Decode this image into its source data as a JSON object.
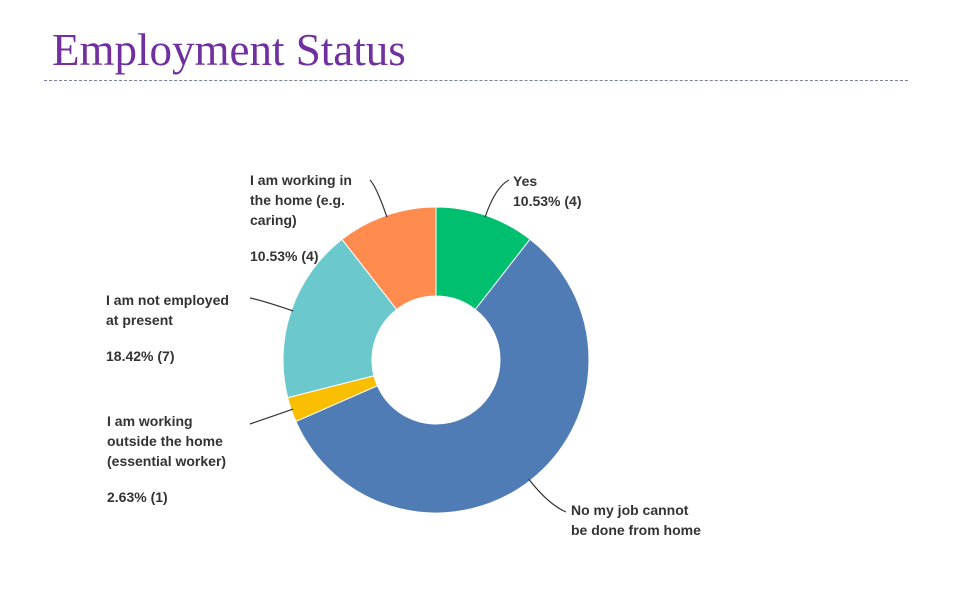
{
  "slide": {
    "title": "Employment Status"
  },
  "chart_data": {
    "type": "pie",
    "donut": true,
    "legend": "none",
    "slices": [
      {
        "label": "Yes",
        "percent": 10.53,
        "count": 4,
        "value_text": "10.53% (4)",
        "color": "#00bf6f"
      },
      {
        "label": "No my job cannot\nbe done from home",
        "percent": 57.89,
        "count": 22,
        "color": "#507cb6"
      },
      {
        "label": "I am working\noutside the home\n(essential worker)",
        "percent": 2.63,
        "count": 1,
        "value_text": "2.63% (1)",
        "color": "#f9be00"
      },
      {
        "label": "I am not employed\nat present",
        "percent": 18.42,
        "count": 7,
        "value_text": "18.42% (7)",
        "color": "#6bc8cd"
      },
      {
        "label": "I am working in\nthe home (e.g.\ncaring)",
        "percent": 10.53,
        "count": 4,
        "value_text": "10.53% (4)",
        "color": "#ff8b4f"
      }
    ]
  }
}
